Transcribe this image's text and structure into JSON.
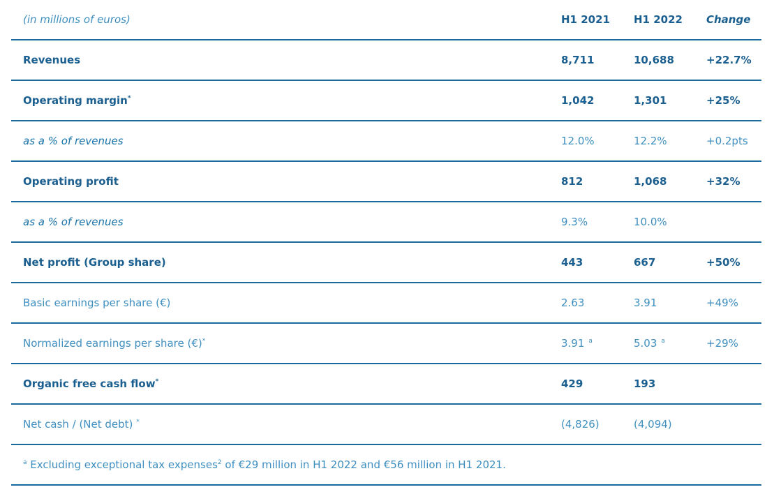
{
  "header": {
    "label": "(in millions of euros)",
    "col1": "H1 2021",
    "col2": "H1 2022",
    "col3": "Change"
  },
  "rows": [
    {
      "label": "Revenues",
      "sup": "",
      "h1_2021": "8,711",
      "h1_2021_sup": "",
      "h1_2022": "10,688",
      "h1_2022_sup": "",
      "change": "+22.7%",
      "style": "bold"
    },
    {
      "label": "Operating margin",
      "sup": "*",
      "h1_2021": "1,042",
      "h1_2021_sup": "",
      "h1_2022": "1,301",
      "h1_2022_sup": "",
      "change": "+25%",
      "style": "bold"
    },
    {
      "label": "as a % of revenues",
      "sup": "",
      "h1_2021": "12.0%",
      "h1_2021_sup": "",
      "h1_2022": "12.2%",
      "h1_2022_sup": "",
      "change": "+0.2pts",
      "style": "italic"
    },
    {
      "label": "Operating profit",
      "sup": "",
      "h1_2021": "812",
      "h1_2021_sup": "",
      "h1_2022": "1,068",
      "h1_2022_sup": "",
      "change": "+32%",
      "style": "bold"
    },
    {
      "label": "as a % of revenues",
      "sup": "",
      "h1_2021": "9.3%",
      "h1_2021_sup": "",
      "h1_2022": "10.0%",
      "h1_2022_sup": "",
      "change": "",
      "style": "italic"
    },
    {
      "label": "Net profit (Group share)",
      "sup": "",
      "h1_2021": "443",
      "h1_2021_sup": "",
      "h1_2022": "667",
      "h1_2022_sup": "",
      "change": "+50%",
      "style": "bold"
    },
    {
      "label": "Basic earnings per share (€)",
      "sup": "",
      "h1_2021": "2.63",
      "h1_2021_sup": "",
      "h1_2022": "3.91",
      "h1_2022_sup": "",
      "change": "+49%",
      "style": "regular"
    },
    {
      "label": "Normalized earnings per share (€)",
      "sup": "*",
      "h1_2021": "3.91",
      "h1_2021_sup": "a",
      "h1_2022": "5.03",
      "h1_2022_sup": "a",
      "change": "+29%",
      "style": "regular"
    },
    {
      "label": "Organic free cash flow",
      "sup": "*",
      "h1_2021": "429",
      "h1_2021_sup": "",
      "h1_2022": "193",
      "h1_2022_sup": "",
      "change": "",
      "style": "bold"
    },
    {
      "label": "Net cash / (Net debt) ",
      "sup": "*",
      "h1_2021": "(4,826)",
      "h1_2021_sup": "",
      "h1_2022": "(4,094)",
      "h1_2022_sup": "",
      "change": "",
      "style": "regular"
    }
  ],
  "footnote": {
    "marker": "a",
    "text_part1": " Excluding exceptional tax expenses",
    "ref": "2",
    "text_part2": " of €29 million in H1 2022 and €56 million in H1 2021."
  }
}
